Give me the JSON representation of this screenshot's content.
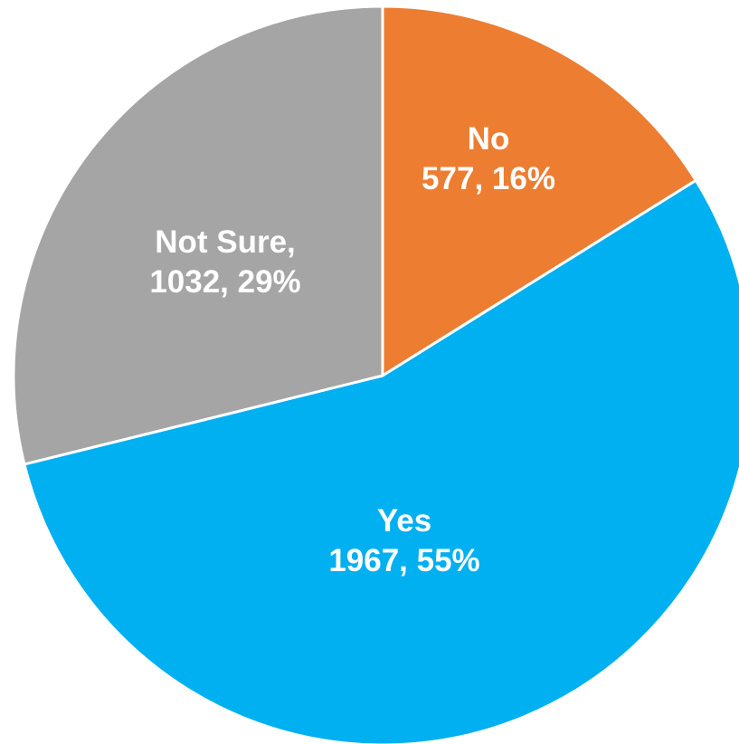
{
  "chart_data": {
    "type": "pie",
    "title": "",
    "slices": [
      {
        "category": "No",
        "value": 577,
        "percent": "16%",
        "color": "#ED7D31",
        "label_lines": [
          "No",
          "577, 16%"
        ]
      },
      {
        "category": "Yes",
        "value": 1967,
        "percent": "55%",
        "color": "#00B0F0",
        "label_lines": [
          "Yes",
          "1967, 55%"
        ]
      },
      {
        "category": "Not Sure",
        "value": 1032,
        "percent": "29%",
        "color": "#A5A5A5",
        "label_lines": [
          "Not Sure,",
          "1032, 29%"
        ]
      }
    ],
    "start_angle": "12 o'clock",
    "direction": "clockwise",
    "legend": "none"
  }
}
